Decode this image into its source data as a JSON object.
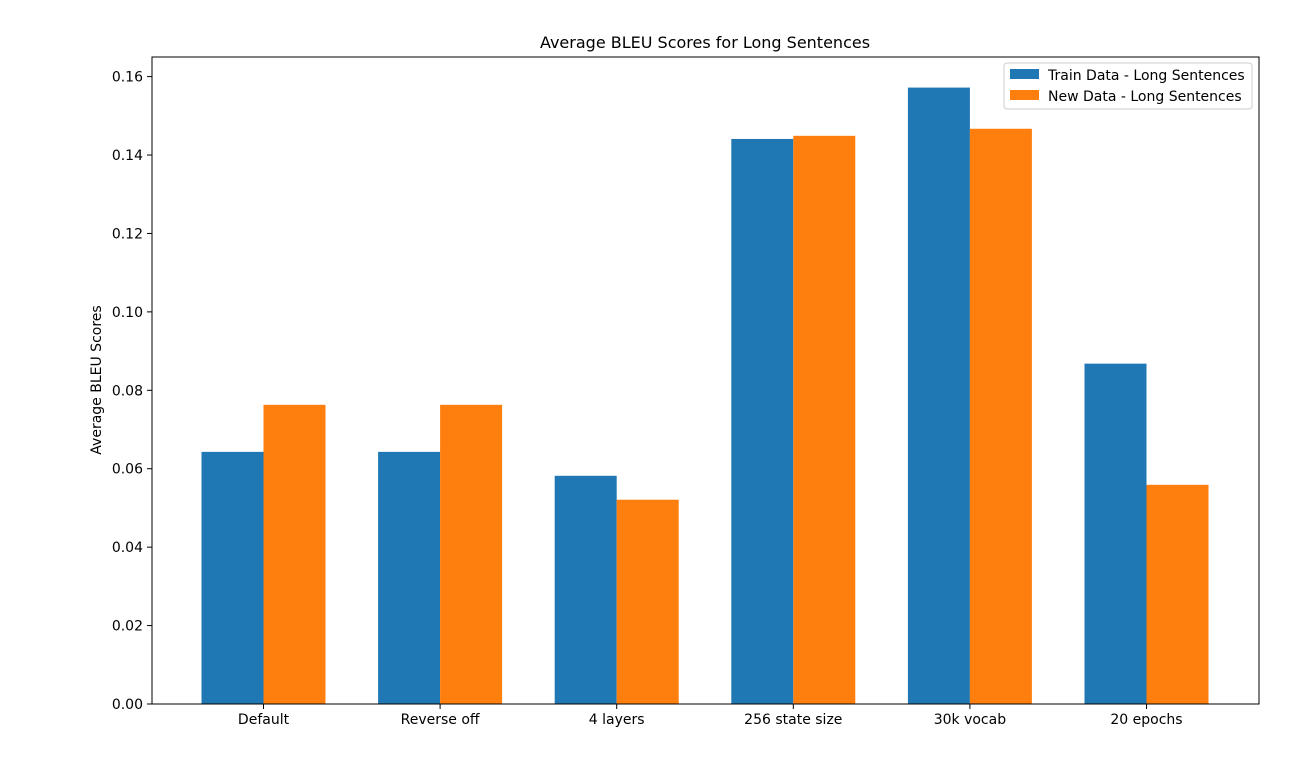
{
  "chart_data": {
    "type": "bar",
    "title": "Average BLEU Scores for Long Sentences",
    "xlabel": "",
    "ylabel": "Average BLEU Scores",
    "categories": [
      "Default",
      "Reverse off",
      "4 layers",
      "256 state size",
      "30k vocab",
      "20 epochs"
    ],
    "series": [
      {
        "name": "Train Data - Long Sentences",
        "color": "#1f77b4",
        "values": [
          0.0643,
          0.0643,
          0.0582,
          0.1441,
          0.1572,
          0.0868
        ]
      },
      {
        "name": "New Data - Long Sentences",
        "color": "#ff7f0e",
        "values": [
          0.0763,
          0.0763,
          0.0521,
          0.1449,
          0.1467,
          0.0559
        ]
      }
    ],
    "ylim": [
      0,
      0.165
    ],
    "yticks": [
      "0.00",
      "0.02",
      "0.04",
      "0.06",
      "0.08",
      "0.10",
      "0.12",
      "0.14",
      "0.16"
    ],
    "grid": false,
    "legend_position": "top-right"
  }
}
